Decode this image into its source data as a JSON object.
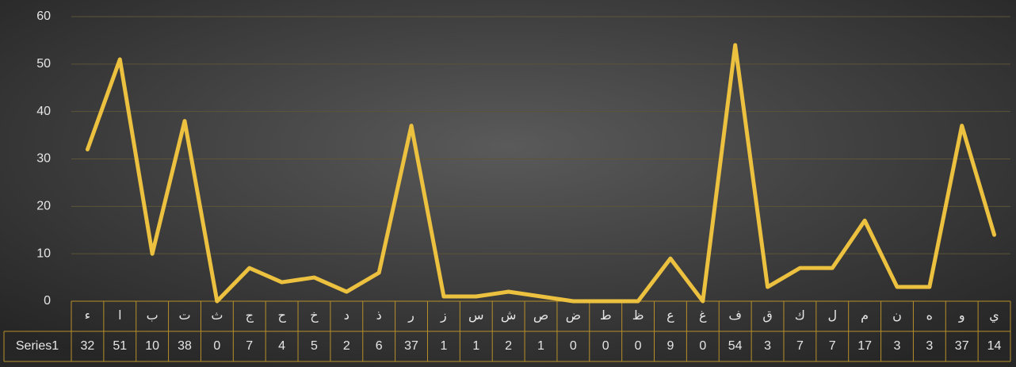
{
  "chart_data": {
    "type": "line",
    "categories": [
      "ء",
      "ا",
      "ب",
      "ت",
      "ث",
      "ج",
      "ح",
      "خ",
      "د",
      "ذ",
      "ر",
      "ز",
      "س",
      "ش",
      "ص",
      "ض",
      "ط",
      "ظ",
      "ع",
      "غ",
      "ف",
      "ق",
      "ك",
      "ل",
      "م",
      "ن",
      "ه",
      "و",
      "ي"
    ],
    "series": [
      {
        "name": "Series1",
        "color": "#ecc13f",
        "values": [
          32,
          51,
          10,
          38,
          0,
          7,
          4,
          5,
          2,
          6,
          37,
          1,
          1,
          2,
          1,
          0,
          0,
          0,
          9,
          0,
          54,
          3,
          7,
          7,
          17,
          3,
          3,
          37,
          14
        ]
      }
    ],
    "ylim": [
      0,
      60
    ],
    "yticks": [
      0,
      10,
      20,
      30,
      40,
      50,
      60
    ],
    "grid": true
  }
}
